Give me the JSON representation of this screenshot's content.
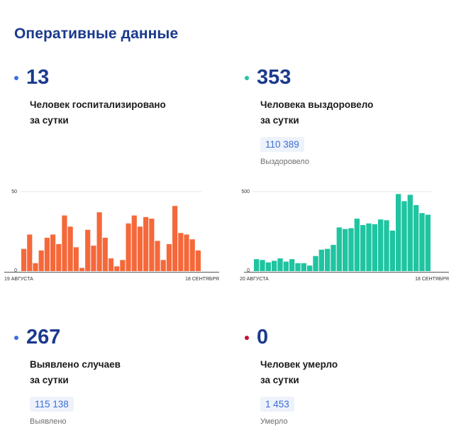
{
  "page_title": "Оперативные данные",
  "colors": {
    "title": "#1b3a8c",
    "hospitalized_dot": "#3b6fe0",
    "recovered_dot": "#1fc4a0",
    "detected_dot": "#3b6fe0",
    "died_dot": "#c8102e",
    "bar_orange": "#f5683a",
    "bar_teal": "#1fc4a0"
  },
  "hospitalized": {
    "number": "13",
    "line1": "Человек госпитализировано",
    "line2": "за сутки"
  },
  "recovered": {
    "number": "353",
    "line1": "Человека выздоровело",
    "line2": "за сутки",
    "total": "110 389",
    "total_caption": "Выздоровело"
  },
  "detected": {
    "number": "267",
    "line1": "Выявлено случаев",
    "line2": "за сутки",
    "total": "115 138",
    "total_caption": "Выявлено"
  },
  "died": {
    "number": "0",
    "line1": "Человек умерло",
    "line2": "за сутки",
    "total": "1 453",
    "total_caption": "Умерло"
  },
  "chart_data": [
    {
      "type": "bar",
      "color": "#f5683a",
      "y_ticks": [
        "50",
        "0"
      ],
      "ylim": [
        0,
        50
      ],
      "x_start_label": "19 АВГУСТА",
      "x_end_label": "18 СЕНТЯБРЯ",
      "values": [
        14,
        23,
        5,
        13,
        21,
        23,
        17,
        35,
        28,
        15,
        2,
        26,
        16,
        37,
        21,
        8,
        3,
        7,
        30,
        35,
        28,
        34,
        33,
        19,
        7,
        17,
        41,
        24,
        23,
        20,
        13
      ]
    },
    {
      "type": "bar",
      "color": "#1fc4a0",
      "y_ticks": [
        "500",
        "0"
      ],
      "ylim": [
        0,
        500
      ],
      "x_start_label": "20 АВГУСТА",
      "x_end_label": "18 СЕНТЯБРЯ",
      "values": [
        75,
        70,
        55,
        65,
        80,
        60,
        75,
        50,
        50,
        35,
        95,
        135,
        140,
        165,
        275,
        265,
        270,
        330,
        290,
        300,
        295,
        325,
        320,
        255,
        485,
        440,
        480,
        415,
        365,
        355
      ]
    }
  ]
}
